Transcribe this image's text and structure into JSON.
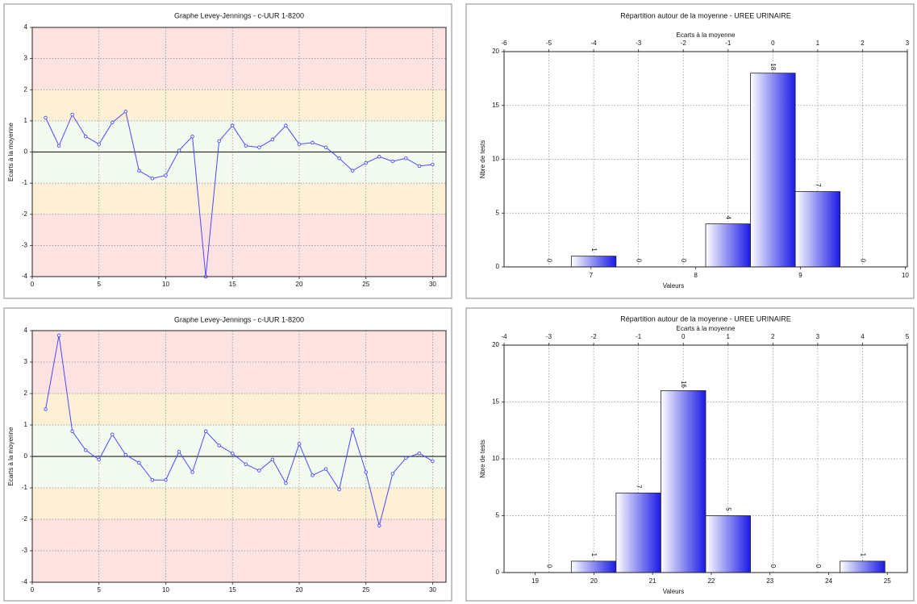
{
  "chart_data": [
    {
      "type": "line",
      "title": "Graphe Levey-Jennings - c-UUR 1-8200",
      "y_label": "Ecarts à la moyenne",
      "x": [
        1,
        2,
        3,
        4,
        5,
        6,
        7,
        8,
        9,
        10,
        11,
        12,
        13,
        14,
        15,
        16,
        17,
        18,
        19,
        20,
        21,
        22,
        23,
        24,
        25,
        26,
        27,
        28,
        29,
        30
      ],
      "values": [
        1.1,
        0.2,
        1.2,
        0.5,
        0.25,
        0.95,
        1.3,
        -0.6,
        -0.85,
        -0.75,
        0.05,
        0.5,
        -4,
        0.35,
        0.85,
        0.2,
        0.15,
        0.4,
        0.85,
        0.25,
        0.3,
        0.15,
        -0.2,
        -0.6,
        -0.35,
        -0.15,
        -0.3,
        -0.2,
        -0.45,
        -0.4
      ],
      "color": "#4a4aff",
      "xlim": [
        0,
        31
      ],
      "xticks": [
        0,
        5,
        10,
        15,
        20,
        25,
        30
      ],
      "ylim": [
        -4,
        4
      ],
      "yticks": [
        -4,
        -3,
        -2,
        -1,
        0,
        1,
        2,
        3,
        4
      ],
      "grid": true
    },
    {
      "type": "histogram",
      "title": "Répartition autour de la moyenne  -  UREE URINAIRE",
      "x2_label": "Ecarts à la moyenne",
      "x_label": "Valeurs",
      "y_label": "Nbre de tests",
      "bins": [
        -5.5,
        -4.5,
        -3.5,
        -2.5,
        -1.5,
        -0.5,
        0.5,
        1.5,
        2.5
      ],
      "counts": [
        0,
        1,
        0,
        0,
        4,
        18,
        7,
        0
      ],
      "color": "#1a1ae6",
      "xlim": [
        -6,
        3
      ],
      "xticks": [
        -6,
        -5,
        -4,
        -3,
        -2,
        -1,
        0,
        1,
        2,
        3
      ],
      "x2lim": [
        6.17,
        10.02
      ],
      "x2ticks": [
        7,
        8,
        9,
        10
      ],
      "ylim": [
        0,
        20
      ],
      "yticks": [
        0,
        5,
        10,
        15,
        20
      ],
      "grid": true
    },
    {
      "type": "line",
      "title": "Graphe Levey-Jennings - c-UUR 1-8200",
      "y_label": "Ecarts à la moyenne",
      "x": [
        1,
        2,
        3,
        4,
        5,
        6,
        7,
        8,
        9,
        10,
        11,
        12,
        13,
        14,
        15,
        16,
        17,
        18,
        19,
        20,
        21,
        22,
        23,
        24,
        25,
        26,
        27,
        28,
        29,
        30
      ],
      "values": [
        1.5,
        3.85,
        0.8,
        0.2,
        -0.1,
        0.7,
        0.05,
        -0.2,
        -0.75,
        -0.75,
        0.15,
        -0.5,
        0.8,
        0.35,
        0.1,
        -0.25,
        -0.45,
        -0.1,
        -0.85,
        0.4,
        -0.6,
        -0.4,
        -1.05,
        0.85,
        -0.5,
        -2.2,
        -0.55,
        -0.05,
        0.1,
        -0.15
      ],
      "color": "#4a4aff",
      "xlim": [
        0,
        31
      ],
      "xticks": [
        0,
        5,
        10,
        15,
        20,
        25,
        30
      ],
      "ylim": [
        -4,
        4
      ],
      "yticks": [
        -4,
        -3,
        -2,
        -1,
        0,
        1,
        2,
        3,
        4
      ],
      "grid": true
    },
    {
      "type": "histogram",
      "title": "Répartition autour de la moyenne  -  UREE URINAIRE",
      "x2_label": "Ecarts à la moyenne",
      "x_label": "Valeurs",
      "y_label": "Nbre de tests",
      "bins": [
        -3.5,
        -2.5,
        -1.5,
        -0.5,
        0.5,
        1.5,
        2.5,
        3.5,
        4.5
      ],
      "counts": [
        0,
        1,
        7,
        16,
        5,
        0,
        0,
        1
      ],
      "color": "#1a1ae6",
      "xlim": [
        -4,
        5
      ],
      "xticks": [
        -4,
        -3,
        -2,
        -1,
        0,
        1,
        2,
        3,
        4,
        5
      ],
      "x2lim": [
        18.47,
        25.34
      ],
      "x2ticks": [
        19,
        20,
        21,
        22,
        23,
        24,
        25
      ],
      "ylim": [
        0,
        20
      ],
      "yticks": [
        0,
        5,
        10,
        15,
        20
      ],
      "grid": true
    }
  ]
}
